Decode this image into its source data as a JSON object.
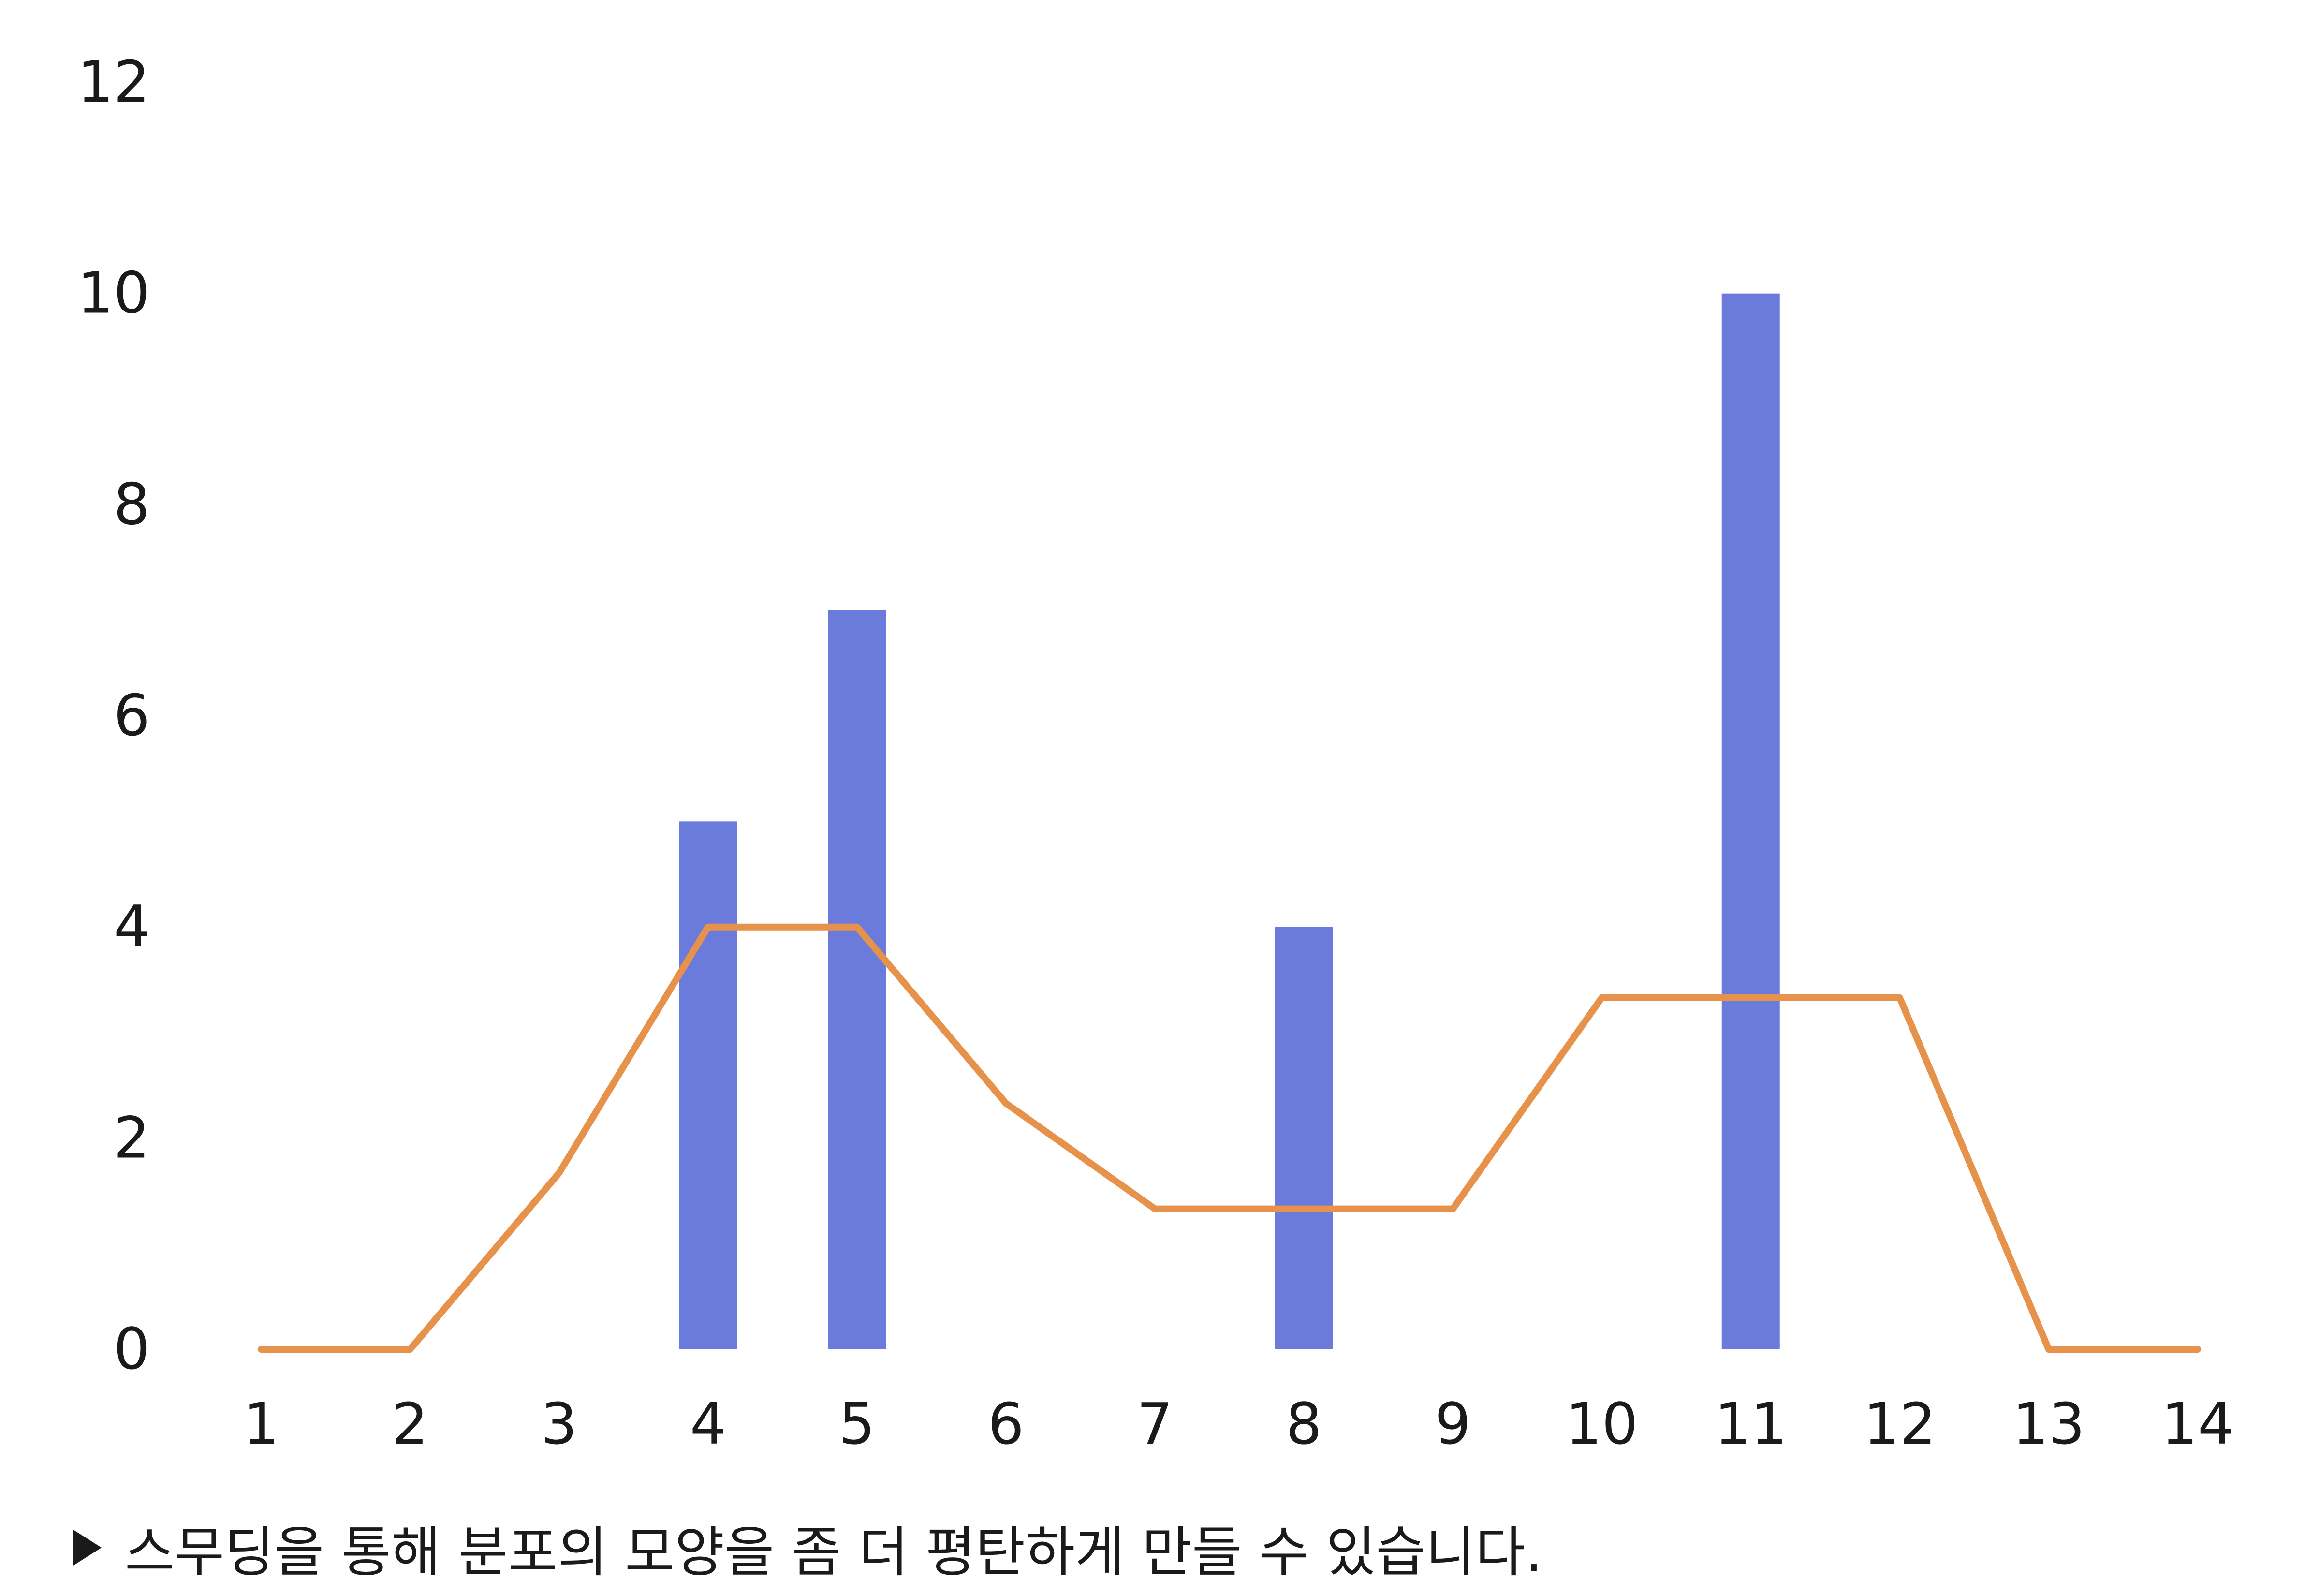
{
  "chart_data": {
    "type": "bar",
    "x": [
      1,
      2,
      3,
      4,
      5,
      6,
      7,
      8,
      9,
      10,
      11,
      12,
      13,
      14
    ],
    "xlim": [
      1,
      14
    ],
    "ylim": [
      0,
      12
    ],
    "y_ticks": [
      0,
      2,
      4,
      6,
      8,
      10,
      12
    ],
    "grid": false,
    "series": [
      {
        "type": "bar",
        "color": "#6b7bdb",
        "values": [
          0,
          0,
          0,
          5,
          7,
          0,
          0,
          4,
          0,
          0,
          10,
          0,
          0,
          0
        ]
      },
      {
        "type": "line",
        "color": "#e6924a",
        "values": [
          0,
          0,
          1.67,
          4,
          4,
          2.33,
          1.33,
          1.33,
          1.33,
          3.33,
          3.33,
          3.33,
          0,
          0
        ]
      }
    ]
  },
  "caption": {
    "marker_icon": "triangle-right-icon",
    "text": "스무딩을 통해 분포의 모양을 좀 더 평탄하게 만들 수 있습니다."
  }
}
